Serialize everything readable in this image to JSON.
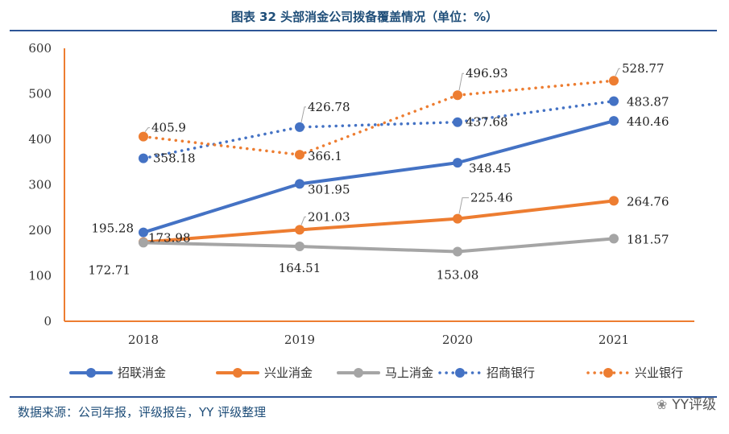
{
  "figure": {
    "title": "图表 32  头部消金公司拨备覆盖情况（单位：%）",
    "source": "数据来源：公司年报，评级报告，YY 评级整理",
    "watermark": "YY评级"
  },
  "chart_data": {
    "type": "line",
    "title": "图表 32  头部消金公司拨备覆盖情况（单位：%）",
    "xlabel": "",
    "ylabel": "",
    "categories": [
      "2018",
      "2019",
      "2020",
      "2021"
    ],
    "ylim": [
      0,
      600
    ],
    "yticks": [
      0,
      100,
      200,
      300,
      400,
      500,
      600
    ],
    "yticks_labels": [
      "0",
      "100",
      "200",
      "300",
      "400",
      "500",
      "600"
    ],
    "legend_position": "bottom",
    "grid": false,
    "series": [
      {
        "name": "招联消金",
        "values": [
          195.28,
          301.95,
          348.45,
          440.46
        ],
        "labels": [
          "195.28",
          "301.95",
          "348.45",
          "440.46"
        ],
        "color": "#4472c4",
        "style": "solid"
      },
      {
        "name": "兴业消金",
        "values": [
          173.98,
          201.03,
          225.46,
          264.76
        ],
        "labels": [
          "173.98",
          "201.03",
          "225.46",
          "264.76"
        ],
        "color": "#ed7d31",
        "style": "solid"
      },
      {
        "name": "马上消金",
        "values": [
          172.71,
          164.51,
          153.08,
          181.57
        ],
        "labels": [
          "172.71",
          "164.51",
          "153.08",
          "181.57"
        ],
        "color": "#a5a5a5",
        "style": "solid"
      },
      {
        "name": "招商银行",
        "values": [
          358.18,
          426.78,
          437.68,
          483.87
        ],
        "labels": [
          "358.18",
          "426.78",
          "437.68",
          "483.87"
        ],
        "color": "#4472c4",
        "style": "dotted"
      },
      {
        "name": "兴业银行",
        "values": [
          405.9,
          366.1,
          496.93,
          528.77
        ],
        "labels": [
          "405.9",
          "366.1",
          "496.93",
          "528.77"
        ],
        "color": "#ed7d31",
        "style": "dotted"
      }
    ]
  }
}
